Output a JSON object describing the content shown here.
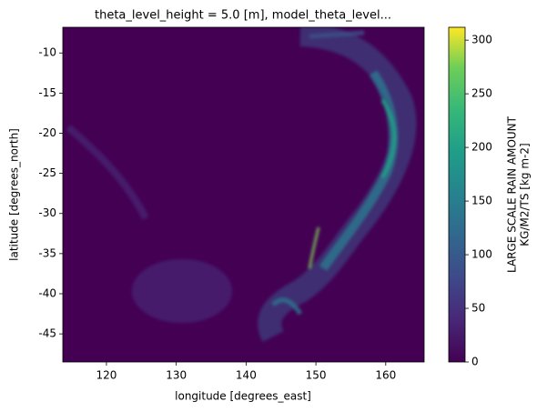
{
  "chart_data": {
    "type": "heatmap",
    "title": "theta_level_height = 5.0 [m], model_theta_level...",
    "x_label": "longitude [degrees_east]",
    "y_label": "latitude [degrees_north]",
    "colorbar_label": [
      "LARGE SCALE RAIN AMOUNT",
      "KG/M2/TS [kg m-2]"
    ],
    "colormap": "viridis",
    "xlim": [
      113.75,
      165.5
    ],
    "xticks": [
      120,
      130,
      140,
      150,
      160
    ],
    "ylim": [
      -48.5,
      -6.8
    ],
    "yticks": [
      -10,
      -15,
      -20,
      -25,
      -30,
      -35,
      -40,
      -45
    ],
    "clim": [
      0,
      312
    ],
    "cticks": [
      0,
      50,
      100,
      150,
      200,
      250,
      300
    ]
  }
}
